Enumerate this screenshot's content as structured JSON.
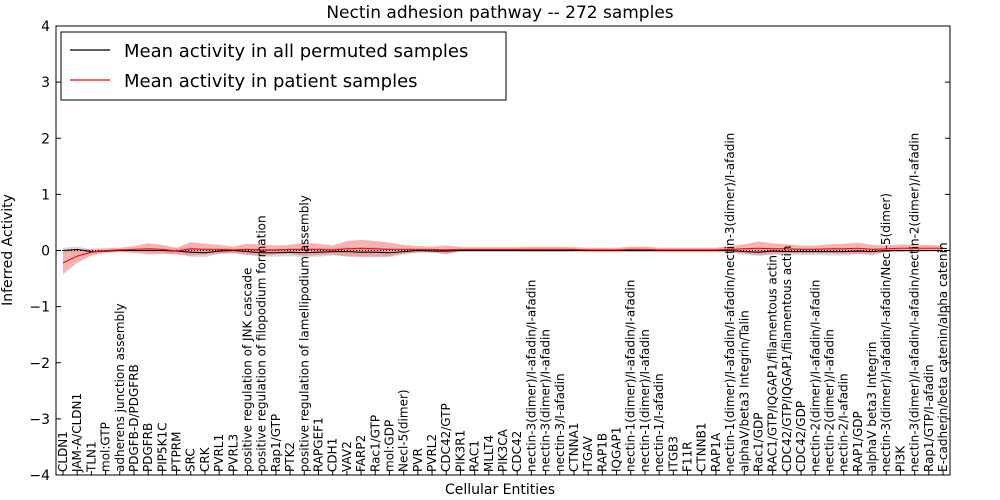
{
  "chart_data": {
    "type": "line",
    "title": "Nectin adhesion pathway -- 272 samples",
    "xlabel": "Cellular Entities",
    "ylabel": "Inferred Activity",
    "ylim": [
      -4,
      4
    ],
    "yticks": [
      -4,
      -3,
      -2,
      -1,
      0,
      1,
      2,
      3,
      4
    ],
    "ytick_labels": [
      "−4",
      "−3",
      "−2",
      "−1",
      "0",
      "1",
      "2",
      "3",
      "4"
    ],
    "grid": false,
    "legend_position": "top-left",
    "categories": [
      "CLDN1",
      "JAM-A/CLDN1",
      "TLN1",
      "mol:GTP",
      "adherens junction assembly",
      "PDGFB-D/PDGFRB",
      "PDGFRB",
      "PIP5K1C",
      "PTPRM",
      "SRC",
      "CRK",
      "PVRL1",
      "PVRL3",
      "positive regulation of JNK cascade",
      "positive regulation of filopodium formation",
      "Rap1/GTP",
      "PTK2",
      "positive regulation of lamellipodium assembly",
      "RAPGEF1",
      "CDH1",
      "VAV2",
      "FARP2",
      "Rac1/GTP",
      "mol:GDP",
      "Necl-5(dimer)",
      "PVR",
      "PVRL2",
      "CDC42/GTP",
      "PIK3R1",
      "RAC1",
      "MLLT4",
      "PIK3CA",
      "CDC42",
      "nectin-3(dimer)/I-afadin/I-afadin",
      "nectin-3(dimer)/I-afadin",
      "nectin-3/I-afadin",
      "CTNNA1",
      "ITGAV",
      "RAP1B",
      "IQGAP1",
      "nectin-1(dimer)/I-afadin/I-afadin",
      "nectin-1(dimer)/I-afadin",
      "nectin-1/I-afadin",
      "ITGB3",
      "F11R",
      "CTNNB1",
      "RAP1A",
      "nectin-1(dimer)/I-afadin/I-afadin/nectin-3(dimer)/I-afadin",
      "alphaV/beta3 Integrin/Talin",
      "Rac1/GDP",
      "RAC1/GTP/IQGAP1/filamentous actin",
      "CDC42/GTP/IQGAP1/filamentous actin",
      "CDC42/GDP",
      "nectin-2(dimer)/I-afadin/I-afadin",
      "nectin-2(dimer)/I-afadin",
      "nectin-2/I-afadin",
      "RAP1/GDP",
      "alphaV beta3 Integrin",
      "nectin-3(dimer)/I-afadin/I-afadin/Necl-5(dimer)",
      "PI3K",
      "nectin-3(dimer)/I-afadin/I-afadin/nectin-2(dimer)/I-afadin",
      "Rap1/GTP/I-afadin",
      "E-cadherin/beta catenin/alpha catenin"
    ],
    "series": [
      {
        "name": "Mean activity in all permuted samples",
        "color": "#000000",
        "band_color": "#aaaaaa",
        "values": [
          0.0,
          0.02,
          -0.02,
          -0.01,
          0.0,
          0.0,
          0.0,
          0.0,
          -0.01,
          -0.03,
          -0.04,
          -0.01,
          0.0,
          -0.02,
          -0.04,
          -0.04,
          -0.03,
          -0.04,
          -0.03,
          -0.02,
          -0.02,
          -0.03,
          -0.03,
          -0.04,
          -0.02,
          0.0,
          -0.01,
          -0.01,
          0.0,
          0.0,
          0.0,
          0.0,
          0.0,
          0.0,
          0.0,
          0.0,
          0.0,
          0.0,
          0.0,
          0.0,
          0.0,
          0.0,
          0.0,
          0.0,
          0.0,
          0.0,
          0.0,
          0.0,
          -0.02,
          -0.03,
          -0.01,
          -0.02,
          -0.02,
          -0.02,
          -0.02,
          -0.02,
          -0.01,
          -0.02,
          0.0,
          0.0,
          0.0,
          0.0,
          0.0
        ],
        "band": [
          0.05,
          0.05,
          0.04,
          0.02,
          0.02,
          0.03,
          0.04,
          0.04,
          0.05,
          0.08,
          0.08,
          0.05,
          0.04,
          0.06,
          0.07,
          0.07,
          0.07,
          0.08,
          0.08,
          0.07,
          0.08,
          0.09,
          0.09,
          0.08,
          0.05,
          0.03,
          0.03,
          0.04,
          0.02,
          0.02,
          0.02,
          0.02,
          0.02,
          0.02,
          0.02,
          0.02,
          0.02,
          0.02,
          0.02,
          0.02,
          0.02,
          0.02,
          0.02,
          0.02,
          0.02,
          0.02,
          0.02,
          0.03,
          0.06,
          0.07,
          0.06,
          0.06,
          0.06,
          0.06,
          0.07,
          0.07,
          0.05,
          0.07,
          0.03,
          0.03,
          0.02,
          0.02,
          0.02
        ]
      },
      {
        "name": "Mean activity in patient samples",
        "color": "#ff0000",
        "band_color": "#f08080",
        "values": [
          -0.22,
          -0.1,
          -0.03,
          0.0,
          0.01,
          0.02,
          0.03,
          0.02,
          -0.01,
          0.03,
          0.02,
          0.02,
          0.01,
          0.02,
          0.01,
          0.01,
          0.02,
          0.02,
          0.02,
          0.01,
          0.03,
          0.04,
          0.03,
          0.02,
          0.02,
          0.02,
          0.02,
          0.01,
          0.02,
          0.02,
          0.02,
          0.02,
          0.02,
          0.02,
          0.02,
          0.02,
          0.02,
          0.01,
          0.01,
          0.01,
          0.02,
          0.02,
          0.01,
          0.01,
          0.01,
          0.01,
          0.01,
          0.02,
          0.03,
          0.04,
          0.03,
          0.03,
          0.02,
          0.02,
          0.03,
          0.03,
          0.04,
          0.02,
          0.03,
          0.04,
          0.04,
          0.04,
          0.04
        ],
        "band": [
          0.2,
          0.12,
          0.06,
          0.04,
          0.04,
          0.06,
          0.1,
          0.08,
          0.06,
          0.12,
          0.1,
          0.08,
          0.06,
          0.1,
          0.1,
          0.08,
          0.08,
          0.12,
          0.1,
          0.08,
          0.14,
          0.15,
          0.14,
          0.12,
          0.08,
          0.06,
          0.05,
          0.08,
          0.04,
          0.04,
          0.04,
          0.04,
          0.04,
          0.05,
          0.05,
          0.05,
          0.04,
          0.04,
          0.04,
          0.04,
          0.05,
          0.05,
          0.04,
          0.04,
          0.04,
          0.04,
          0.04,
          0.06,
          0.08,
          0.12,
          0.1,
          0.08,
          0.07,
          0.07,
          0.08,
          0.09,
          0.1,
          0.08,
          0.06,
          0.07,
          0.06,
          0.06,
          0.05
        ]
      }
    ]
  }
}
